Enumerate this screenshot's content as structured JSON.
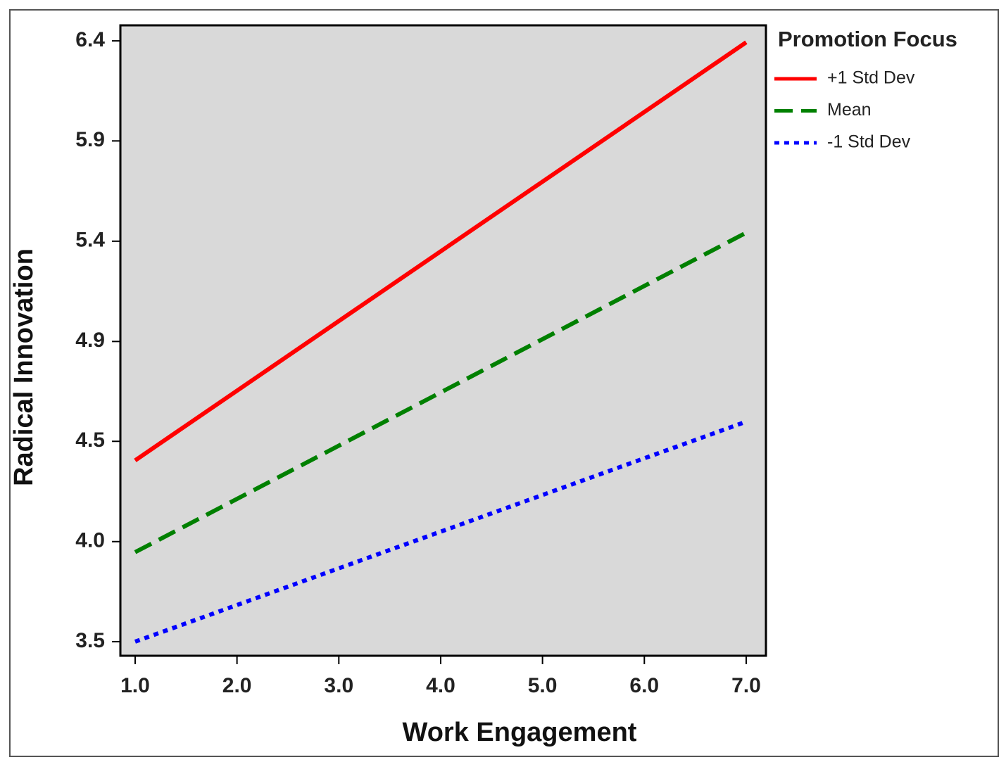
{
  "chart_data": {
    "type": "line",
    "xlabel": "Work Engagement",
    "ylabel": "Radical Innovation",
    "legend_title": "Promotion Focus",
    "legend": "right",
    "x": [
      1,
      7
    ],
    "series": [
      {
        "name": "+1 Std Dev",
        "color": "#ff0000",
        "dash": "solid",
        "values": [
          4.375,
          6.393
        ]
      },
      {
        "name": "Mean",
        "color": "#008000",
        "dash": "dashed",
        "values": [
          3.932,
          5.474
        ]
      },
      {
        "name": "-1 Std Dev",
        "color": "#0000ff",
        "dash": "dotted",
        "values": [
          3.5,
          4.562
        ]
      }
    ],
    "xlim": [
      0.855,
      7.194
    ],
    "xticks": [
      {
        "value": 1,
        "label": "1.0"
      },
      {
        "value": 2,
        "label": "2.0"
      },
      {
        "value": 3,
        "label": "3.0"
      },
      {
        "value": 4,
        "label": "4.0"
      },
      {
        "value": 5,
        "label": "5.0"
      },
      {
        "value": 6,
        "label": "6.0"
      },
      {
        "value": 7,
        "label": "7.0"
      }
    ],
    "ylim": [
      3.432,
      6.475
    ],
    "yticks": [
      3.5,
      {
        "value": 3.983,
        "label": "4.0"
      },
      {
        "value": 4.467,
        "label": "4.5"
      },
      {
        "value": 4.949,
        "label": "4.9"
      },
      {
        "value": 5.433,
        "label": "5.4"
      },
      {
        "value": 5.917,
        "label": "5.9"
      },
      6.4
    ],
    "plot_background": "#d9d9d9"
  }
}
